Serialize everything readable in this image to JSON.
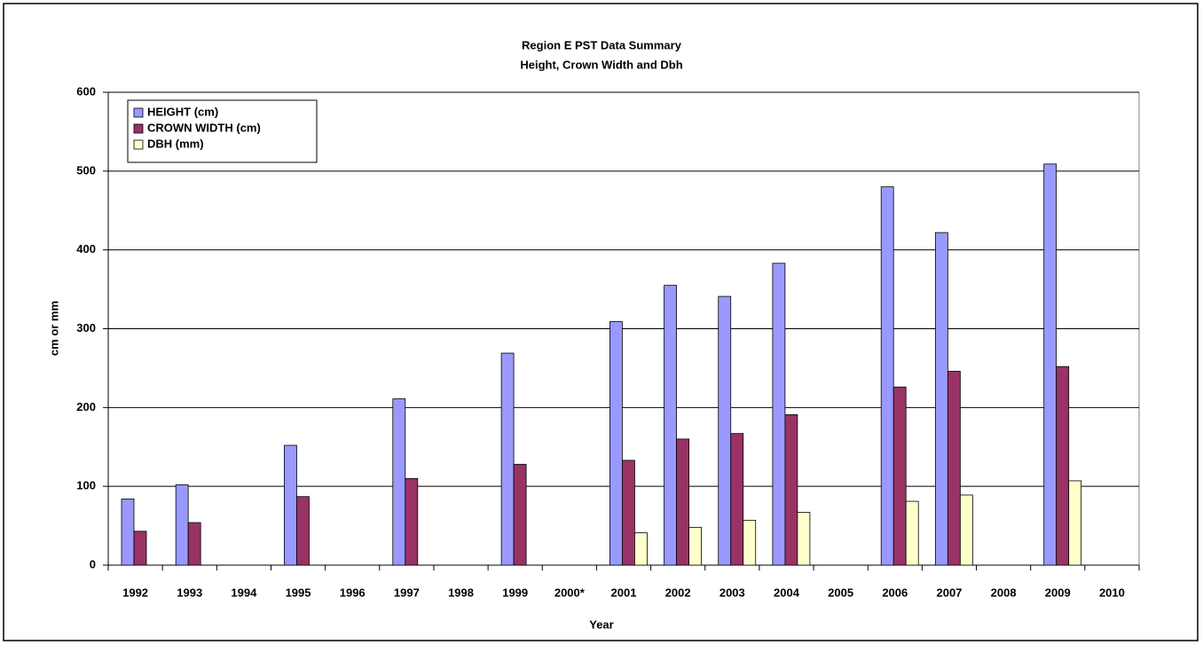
{
  "chart_data": {
    "type": "bar",
    "title": "Region E PST Data Summary",
    "subtitle": "Height, Crown Width and Dbh",
    "x_label": "Year",
    "y_label": "cm or mm",
    "categories": [
      "1992",
      "1993",
      "1994",
      "1995",
      "1996",
      "1997",
      "1998",
      "1999",
      "2000*",
      "2001",
      "2002",
      "2003",
      "2004",
      "2005",
      "2006",
      "2007",
      "2008",
      "2009",
      "2010"
    ],
    "series": [
      {
        "name": "HEIGHT (cm)",
        "color": "#9999ff",
        "values": [
          84,
          102,
          null,
          152,
          null,
          211,
          null,
          269,
          null,
          309,
          355,
          341,
          383,
          null,
          480,
          422,
          null,
          509,
          null
        ]
      },
      {
        "name": "CROWN WIDTH (cm)",
        "color": "#993366",
        "values": [
          43,
          54,
          null,
          87,
          null,
          110,
          null,
          128,
          null,
          133,
          160,
          167,
          191,
          null,
          226,
          246,
          null,
          252,
          null
        ]
      },
      {
        "name": "DBH (mm)",
        "color": "#ffffcc",
        "values": [
          null,
          null,
          null,
          null,
          null,
          null,
          null,
          null,
          null,
          41,
          48,
          57,
          67,
          null,
          81,
          89,
          null,
          107,
          null
        ]
      }
    ],
    "ylim": [
      0,
      600
    ],
    "yticks": [
      0,
      100,
      200,
      300,
      400,
      500,
      600
    ],
    "grid": true,
    "legend": "top-left"
  }
}
